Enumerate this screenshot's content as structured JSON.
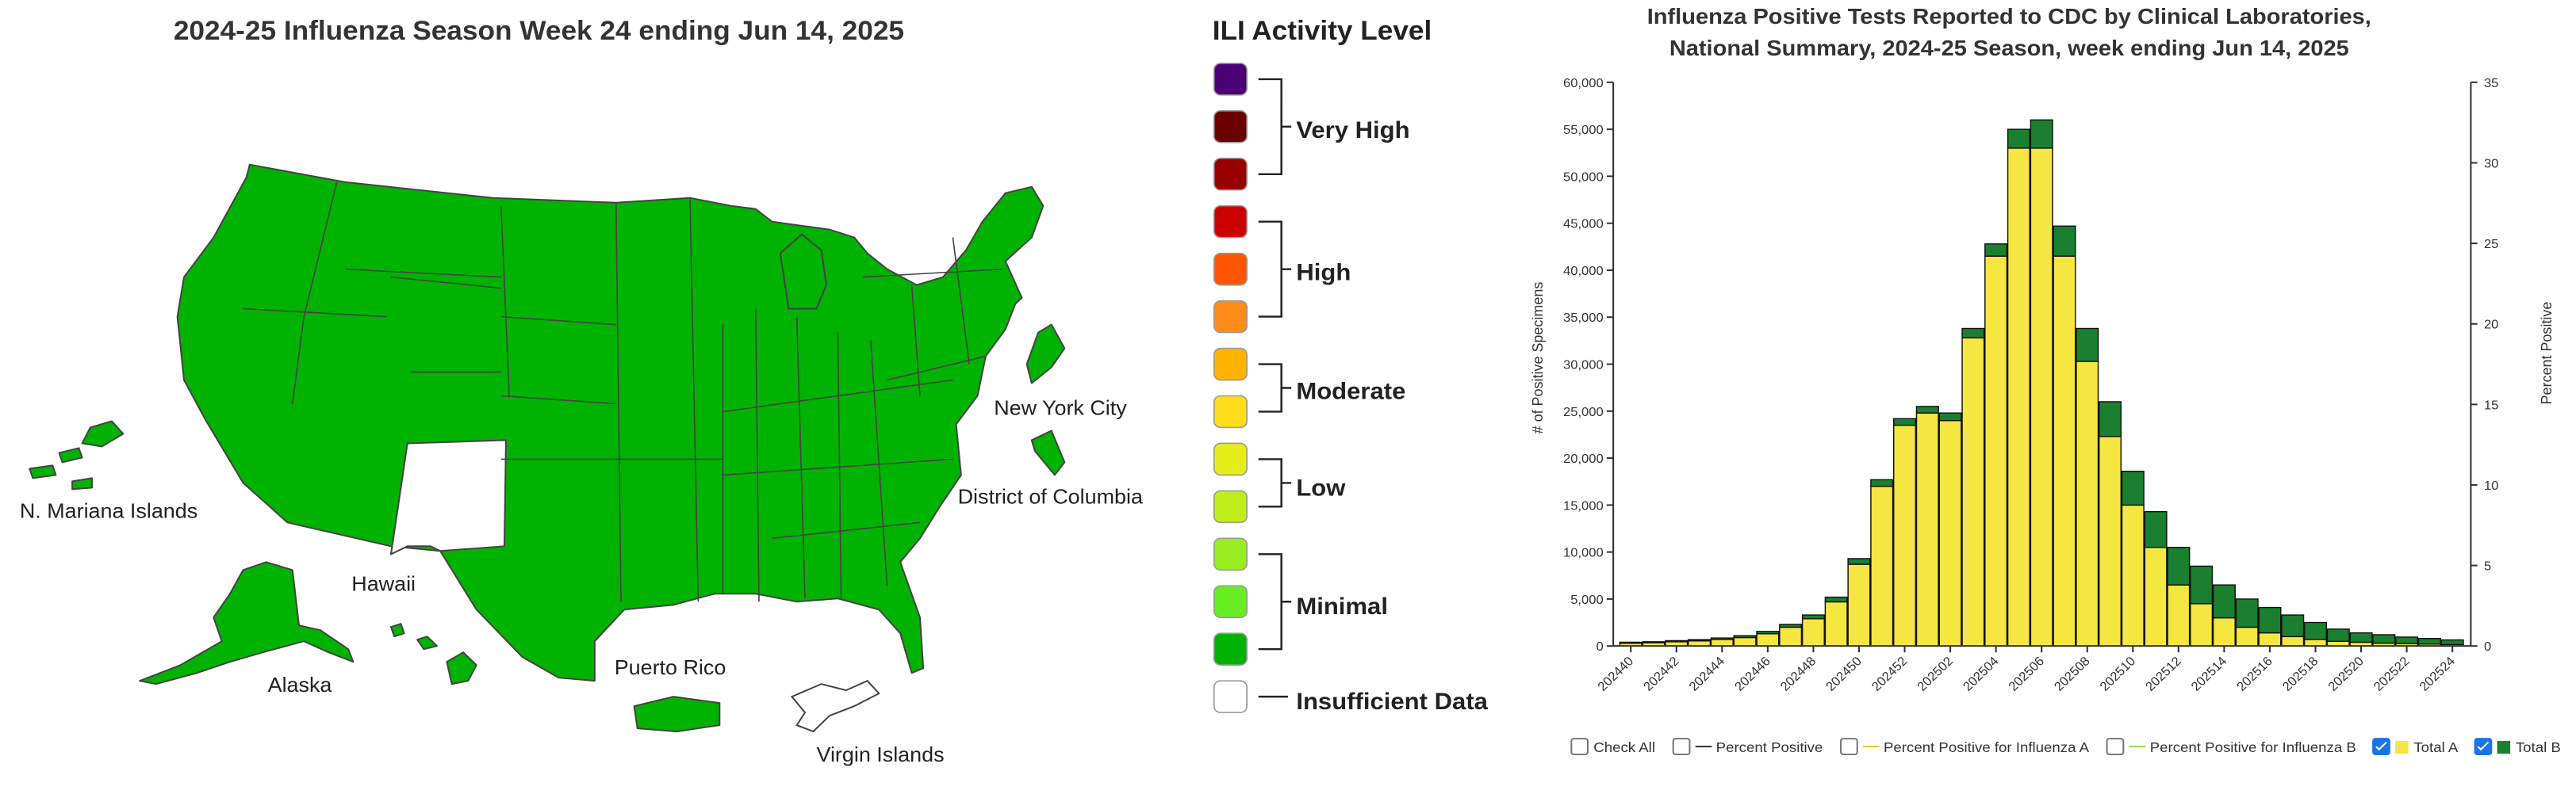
{
  "map": {
    "title": "2024-25 Influenza Season Week 24 ending Jun 14, 2025",
    "labels": {
      "nyc": "New York City",
      "dc": "District of Columbia",
      "mariana": "N. Mariana Islands",
      "hawaii": "Hawaii",
      "alaska": "Alaska",
      "puerto_rico": "Puerto Rico",
      "virgin_islands": "Virgin Islands"
    },
    "colors": {
      "minimal": "#00b300",
      "no_data": "#ffffff",
      "state_border": "#444444"
    }
  },
  "legend": {
    "title": "ILI Activity Level",
    "swatches": [
      "#4b0076",
      "#6b0000",
      "#990000",
      "#cc0000",
      "#ff5500",
      "#ff8c1a",
      "#ffb300",
      "#ffdd1a",
      "#e6ee1a",
      "#bfee1a",
      "#99ee22",
      "#66ee22",
      "#00b300",
      "#ffffff"
    ],
    "groups": [
      {
        "label": "Very High"
      },
      {
        "label": "High"
      },
      {
        "label": "Moderate"
      },
      {
        "label": "Low"
      },
      {
        "label": "Minimal"
      },
      {
        "label": "Insufficient Data"
      }
    ]
  },
  "chart": {
    "title_line1": "Influenza Positive Tests Reported to CDC by Clinical Laboratories,",
    "title_line2": "National Summary, 2024-25 Season, week ending Jun 14, 2025",
    "controls": {
      "check_all": "Check All",
      "percent_positive": "Percent Positive",
      "percent_positive_a": "Percent Positive for Influenza A",
      "percent_positive_b": "Percent Positive for Influenza B",
      "total_a": "Total A",
      "total_b": "Total B"
    },
    "colors": {
      "a": "#f5e642",
      "b": "#1a7f2e",
      "pp_a": "#e8c93a",
      "pp_b": "#9fd84a"
    }
  },
  "chart_data": {
    "type": "bar",
    "stacked": true,
    "xlabel": "",
    "ylabel": "# of Positive Specimens",
    "y2label": "Percent Positive",
    "ylim": [
      0,
      60000
    ],
    "y2lim": [
      0,
      35
    ],
    "yticks": [
      0,
      5000,
      10000,
      15000,
      20000,
      25000,
      30000,
      35000,
      40000,
      45000,
      50000,
      55000,
      60000
    ],
    "y2ticks": [
      0,
      5,
      10,
      15,
      20,
      25,
      30,
      35
    ],
    "tick_labels": [
      "202440",
      "202442",
      "202444",
      "202446",
      "202448",
      "202450",
      "202452",
      "202502",
      "202504",
      "202506",
      "202508",
      "202510",
      "202512",
      "202514",
      "202516",
      "202518",
      "202520",
      "202522",
      "202524"
    ],
    "categories": [
      "202440",
      "202441",
      "202442",
      "202443",
      "202444",
      "202445",
      "202446",
      "202447",
      "202448",
      "202449",
      "202450",
      "202451",
      "202452",
      "202501",
      "202502",
      "202503",
      "202504",
      "202505",
      "202506",
      "202507",
      "202508",
      "202509",
      "202510",
      "202511",
      "202512",
      "202513",
      "202514",
      "202515",
      "202516",
      "202517",
      "202518",
      "202519",
      "202520",
      "202521",
      "202522",
      "202523",
      "202524"
    ],
    "series": [
      {
        "name": "Total A",
        "values": [
          300,
          350,
          450,
          550,
          700,
          900,
          1300,
          2000,
          2900,
          4700,
          8700,
          17000,
          23500,
          24800,
          24000,
          32800,
          41500,
          53000,
          53000,
          41500,
          30300,
          22300,
          15000,
          10500,
          6500,
          4500,
          3000,
          2000,
          1400,
          1000,
          700,
          500,
          400,
          300,
          250,
          200,
          150
        ]
      },
      {
        "name": "Total B",
        "values": [
          100,
          100,
          120,
          130,
          150,
          200,
          250,
          300,
          400,
          500,
          600,
          700,
          700,
          700,
          800,
          1000,
          1300,
          2000,
          3000,
          3200,
          3500,
          3700,
          3600,
          3800,
          4000,
          4000,
          3500,
          3000,
          2700,
          2300,
          1800,
          1300,
          1000,
          900,
          700,
          600,
          500
        ]
      }
    ]
  }
}
